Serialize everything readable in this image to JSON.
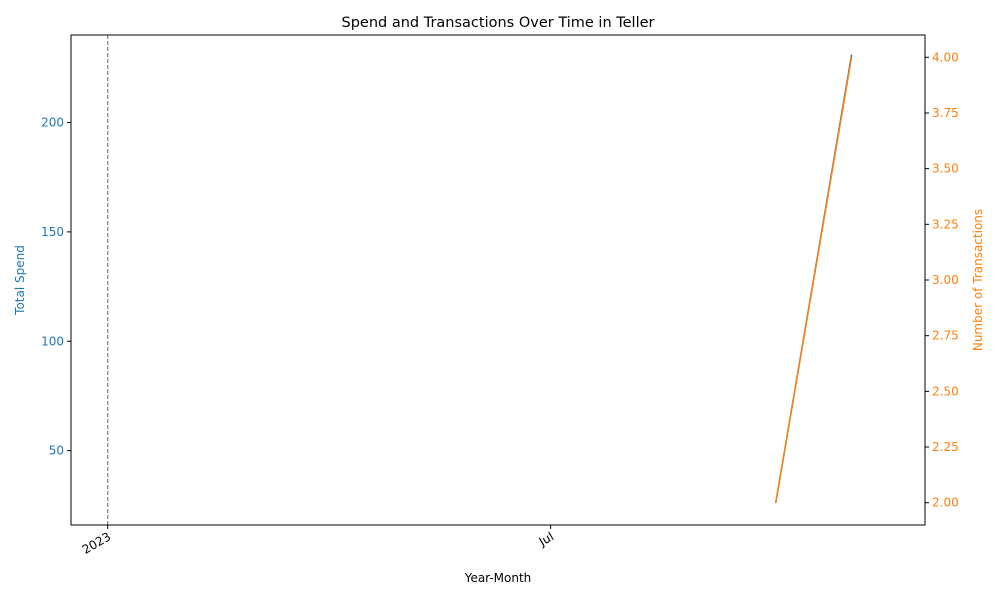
{
  "chart_data": {
    "type": "line",
    "title": "Spend and Transactions Over Time in Teller",
    "xlabel": "Year-Month",
    "x_axis": {
      "type": "date",
      "range": [
        "2022-12-17",
        "2023-12-01"
      ],
      "ticks": [
        {
          "date": "2023-01-01",
          "label": "2023"
        },
        {
          "date": "2023-07-01",
          "label": "Jul"
        }
      ],
      "reference_line": {
        "date": "2023-01-01",
        "style": "dashed",
        "color": "#808080"
      }
    },
    "y_left": {
      "label": "Total Spend",
      "color": "#1f77b4",
      "ylim": [
        16,
        240
      ],
      "ticks": [
        50,
        100,
        150,
        200
      ]
    },
    "y_right": {
      "label": "Number of Transactions",
      "color": "#ff7f0e",
      "ylim": [
        1.9,
        4.1
      ],
      "ticks": [
        "2.00",
        "2.25",
        "2.50",
        "2.75",
        "3.00",
        "3.25",
        "3.50",
        "3.75",
        "4.00"
      ]
    },
    "series": [
      {
        "axis": "left",
        "color": "#1f77b4",
        "x": [
          "2023-10-01",
          "2023-11-01"
        ],
        "values": [
          26,
          231
        ]
      },
      {
        "axis": "right",
        "color": "#ff7f0e",
        "x": [
          "2023-10-01",
          "2023-11-01"
        ],
        "values": [
          2,
          4
        ]
      }
    ],
    "grid": false,
    "legend": "none"
  }
}
